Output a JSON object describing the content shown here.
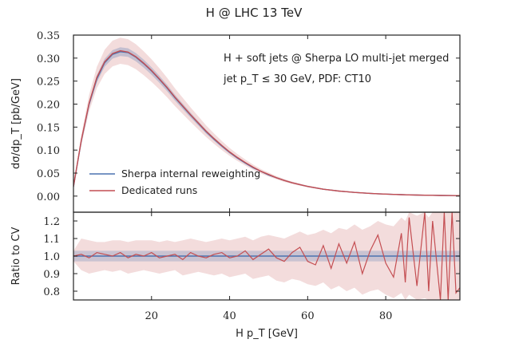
{
  "chart_data": [
    {
      "type": "line",
      "panel": "main",
      "title": "H @ LHC 13 TeV",
      "xlabel": "",
      "ylabel": "dσ/dp_T [pb/GeV]",
      "xlim": [
        0,
        99
      ],
      "ylim": [
        -0.035,
        0.35
      ],
      "yticks": [
        "0.00",
        "0.05",
        "0.10",
        "0.15",
        "0.20",
        "0.25",
        "0.30",
        "0.35"
      ],
      "ytick_values": [
        0,
        0.05,
        0.1,
        0.15,
        0.2,
        0.25,
        0.3,
        0.35
      ],
      "annotations": [
        "H + soft jets @ Sherpa LO multi-jet merged",
        "jet p_T ≤ 30 GeV, PDF: CT10"
      ],
      "legend_placement": "lower-left",
      "x": [
        0,
        2,
        4,
        6,
        8,
        10,
        12,
        14,
        16,
        18,
        20,
        22,
        24,
        26,
        28,
        30,
        32,
        34,
        36,
        38,
        40,
        42,
        44,
        46,
        48,
        50,
        52,
        54,
        56,
        58,
        60,
        62,
        64,
        66,
        68,
        70,
        72,
        74,
        76,
        78,
        80,
        82,
        84,
        86,
        88,
        90,
        92,
        94,
        96,
        98,
        99
      ],
      "series": [
        {
          "name": "Sherpa internal reweighting",
          "color": "#4c72b0",
          "values": [
            0.02,
            0.12,
            0.2,
            0.255,
            0.29,
            0.308,
            0.314,
            0.312,
            0.302,
            0.288,
            0.272,
            0.254,
            0.235,
            0.214,
            0.195,
            0.176,
            0.158,
            0.14,
            0.124,
            0.109,
            0.095,
            0.083,
            0.072,
            0.062,
            0.054,
            0.046,
            0.04,
            0.034,
            0.029,
            0.025,
            0.021,
            0.018,
            0.015,
            0.013,
            0.011,
            0.0095,
            0.008,
            0.007,
            0.006,
            0.005,
            0.0043,
            0.0037,
            0.0032,
            0.0027,
            0.0023,
            0.002,
            0.0017,
            0.0015,
            0.0013,
            0.0011,
            0.001
          ],
          "band_relative": [
            0.02,
            0.03,
            0.03,
            0.03,
            0.03,
            0.03,
            0.03,
            0.03,
            0.03,
            0.03,
            0.03,
            0.03,
            0.03,
            0.03,
            0.03,
            0.03,
            0.03,
            0.03,
            0.03,
            0.03,
            0.03,
            0.03,
            0.03,
            0.03,
            0.03,
            0.03,
            0.03,
            0.03,
            0.03,
            0.03,
            0.03,
            0.03,
            0.03,
            0.03,
            0.03,
            0.03,
            0.03,
            0.03,
            0.03,
            0.03,
            0.03,
            0.03,
            0.03,
            0.03,
            0.03,
            0.03,
            0.03,
            0.03,
            0.03,
            0.03,
            0.03
          ]
        },
        {
          "name": "Dedicated runs",
          "color": "#c44e52",
          "values": [
            0.021,
            0.121,
            0.202,
            0.258,
            0.292,
            0.31,
            0.316,
            0.313,
            0.303,
            0.289,
            0.273,
            0.255,
            0.236,
            0.215,
            0.196,
            0.177,
            0.159,
            0.141,
            0.125,
            0.11,
            0.096,
            0.084,
            0.073,
            0.063,
            0.054,
            0.047,
            0.04,
            0.034,
            0.029,
            0.025,
            0.021,
            0.018,
            0.015,
            0.013,
            0.011,
            0.0095,
            0.008,
            0.007,
            0.006,
            0.005,
            0.0043,
            0.0037,
            0.0032,
            0.0027,
            0.0023,
            0.002,
            0.0017,
            0.0015,
            0.0013,
            0.0011,
            0.001
          ],
          "band_relative": [
            0.1,
            0.09,
            0.09,
            0.09,
            0.09,
            0.09,
            0.09,
            0.09,
            0.09,
            0.09,
            0.09,
            0.09,
            0.09,
            0.09,
            0.09,
            0.09,
            0.09,
            0.09,
            0.09,
            0.09,
            0.09,
            0.09,
            0.09,
            0.09,
            0.09,
            0.09,
            0.09,
            0.09,
            0.09,
            0.09,
            0.09,
            0.09,
            0.09,
            0.09,
            0.09,
            0.09,
            0.09,
            0.09,
            0.09,
            0.09,
            0.09,
            0.09,
            0.09,
            0.09,
            0.09,
            0.09,
            0.09,
            0.09,
            0.09,
            0.09,
            0.09
          ]
        }
      ]
    },
    {
      "type": "line",
      "panel": "ratio",
      "title": "",
      "xlabel": "H p_T [GeV]",
      "ylabel": "Ratio to CV",
      "xlim": [
        0,
        99
      ],
      "ylim": [
        0.75,
        1.25
      ],
      "xticks": [
        "20",
        "40",
        "60",
        "80"
      ],
      "xtick_values": [
        20,
        40,
        60,
        80
      ],
      "yticks": [
        "0.8",
        "0.9",
        "1.0",
        "1.1",
        "1.2"
      ],
      "ytick_values": [
        0.8,
        0.9,
        1.0,
        1.1,
        1.2
      ],
      "series": [
        {
          "name": "Sherpa internal reweighting",
          "color": "#4c72b0",
          "x": [
            0,
            99
          ],
          "values": [
            1.0,
            1.0
          ],
          "band": [
            [
              0.97,
              1.03
            ],
            [
              0.97,
              1.03
            ]
          ]
        },
        {
          "name": "Dedicated runs",
          "color": "#c44e52",
          "x": [
            0,
            2,
            4,
            6,
            8,
            10,
            12,
            14,
            16,
            18,
            20,
            22,
            24,
            26,
            28,
            30,
            32,
            34,
            36,
            38,
            40,
            42,
            44,
            46,
            48,
            50,
            52,
            54,
            56,
            58,
            60,
            62,
            64,
            66,
            68,
            70,
            72,
            74,
            76,
            78,
            80,
            82,
            84,
            85,
            86,
            88,
            90,
            91,
            92,
            94,
            95,
            96,
            97,
            98,
            99
          ],
          "values": [
            1.0,
            1.01,
            0.99,
            1.02,
            1.01,
            1.0,
            1.02,
            0.99,
            1.01,
            1.0,
            1.02,
            0.99,
            1.0,
            1.01,
            0.98,
            1.02,
            1.0,
            0.99,
            1.01,
            1.02,
            0.99,
            1.0,
            1.03,
            0.98,
            1.01,
            1.04,
            0.99,
            0.97,
            1.02,
            1.05,
            0.97,
            0.95,
            1.06,
            0.93,
            1.07,
            0.96,
            1.08,
            0.9,
            1.03,
            1.12,
            0.96,
            0.88,
            1.13,
            0.85,
            1.22,
            0.83,
            1.25,
            0.8,
            1.2,
            0.75,
            1.25,
            0.75,
            1.25,
            0.79,
            0.82
          ],
          "band_upper": [
            1.03,
            1.1,
            1.09,
            1.08,
            1.08,
            1.09,
            1.09,
            1.08,
            1.09,
            1.09,
            1.09,
            1.08,
            1.09,
            1.08,
            1.09,
            1.1,
            1.09,
            1.08,
            1.09,
            1.1,
            1.09,
            1.1,
            1.11,
            1.09,
            1.11,
            1.12,
            1.11,
            1.1,
            1.12,
            1.14,
            1.12,
            1.13,
            1.15,
            1.13,
            1.16,
            1.15,
            1.18,
            1.15,
            1.17,
            1.2,
            1.18,
            1.17,
            1.22,
            1.2,
            1.25,
            1.23,
            1.25,
            1.22,
            1.25,
            1.25,
            1.25,
            1.25,
            1.25,
            1.25,
            1.25
          ],
          "band_lower": [
            0.97,
            0.92,
            0.9,
            0.91,
            0.92,
            0.91,
            0.92,
            0.9,
            0.91,
            0.92,
            0.91,
            0.9,
            0.91,
            0.92,
            0.89,
            0.9,
            0.91,
            0.9,
            0.89,
            0.9,
            0.88,
            0.89,
            0.9,
            0.87,
            0.88,
            0.89,
            0.86,
            0.85,
            0.87,
            0.86,
            0.84,
            0.83,
            0.85,
            0.81,
            0.83,
            0.8,
            0.82,
            0.78,
            0.8,
            0.81,
            0.78,
            0.76,
            0.79,
            0.75,
            0.78,
            0.75,
            0.76,
            0.75,
            0.75,
            0.75,
            0.75,
            0.75,
            0.75,
            0.75,
            0.75
          ]
        }
      ]
    }
  ]
}
